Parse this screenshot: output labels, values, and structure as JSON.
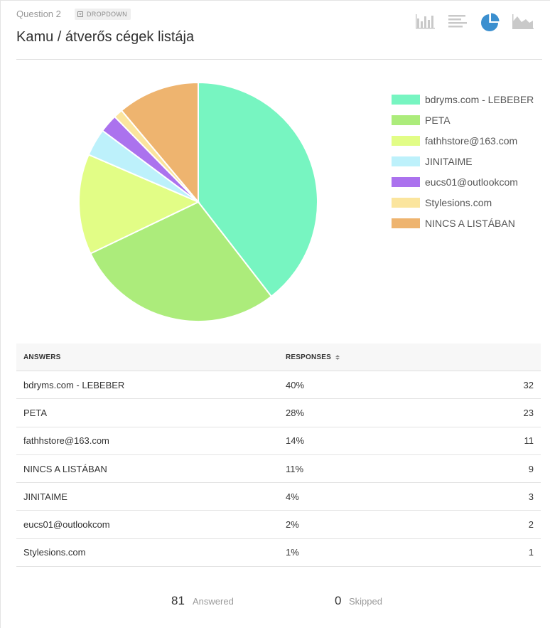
{
  "question": {
    "label": "Question 2",
    "badge": "DROPDOWN",
    "title": "Kamu / átverős cégek listája"
  },
  "toolbar": {
    "buttons": [
      {
        "name": "vertical-bar-chart-icon",
        "active": false
      },
      {
        "name": "horizontal-bar-chart-icon",
        "active": false
      },
      {
        "name": "pie-chart-icon",
        "active": true
      },
      {
        "name": "area-chart-icon",
        "active": false
      }
    ],
    "active_color": "#3b8fcf",
    "inactive_color": "#c9c9c9"
  },
  "chart_data": {
    "type": "pie",
    "categories": [
      "bdryms.com - LEBEBER",
      "PETA",
      "fathhstore@163.com",
      "JINITAIME",
      "eucs01@outlookcom",
      "Stylesions.com",
      "NINCS A LISTÁBAN"
    ],
    "values": [
      32,
      23,
      11,
      3,
      2,
      1,
      9
    ],
    "colors": [
      "#77f5c1",
      "#acec7b",
      "#e2fd86",
      "#bdf1fb",
      "#ab72ee",
      "#fbe59e",
      "#eeb46f"
    ],
    "legend_position": "right"
  },
  "table": {
    "headers": {
      "answers": "ANSWERS",
      "responses": "RESPONSES"
    },
    "rows": [
      {
        "answer": "bdryms.com - LEBEBER",
        "percent": "40%",
        "count": "32"
      },
      {
        "answer": "PETA",
        "percent": "28%",
        "count": "23"
      },
      {
        "answer": "fathhstore@163.com",
        "percent": "14%",
        "count": "11"
      },
      {
        "answer": "NINCS A LISTÁBAN",
        "percent": "11%",
        "count": "9"
      },
      {
        "answer": "JINITAIME",
        "percent": "4%",
        "count": "3"
      },
      {
        "answer": "eucs01@outlookcom",
        "percent": "2%",
        "count": "2"
      },
      {
        "answer": "Stylesions.com",
        "percent": "1%",
        "count": "1"
      }
    ]
  },
  "summary": {
    "answered_count": "81",
    "answered_label": "Answered",
    "skipped_count": "0",
    "skipped_label": "Skipped"
  }
}
